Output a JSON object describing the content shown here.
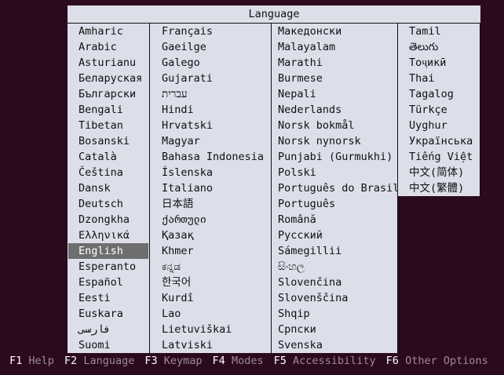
{
  "title": "Language",
  "selected": "English",
  "columns": [
    [
      "Amharic",
      "Arabic",
      "Asturianu",
      "Беларуская",
      "Български",
      "Bengali",
      "Tibetan",
      "Bosanski",
      "Català",
      "Čeština",
      "Dansk",
      "Deutsch",
      "Dzongkha",
      "Ελληνικά",
      "English",
      "Esperanto",
      "Español",
      "Eesti",
      "Euskara",
      "فارسی",
      "Suomi"
    ],
    [
      "Français",
      "Gaeilge",
      "Galego",
      "Gujarati",
      "עברית",
      "Hindi",
      "Hrvatski",
      "Magyar",
      "Bahasa Indonesia",
      "Íslenska",
      "Italiano",
      "日本語",
      "ქართული",
      "Қазақ",
      "Khmer",
      "ಕನ್ನಡ",
      "한국어",
      "Kurdî",
      "Lao",
      "Lietuviškai",
      "Latviski"
    ],
    [
      "Македонски",
      "Malayalam",
      "Marathi",
      "Burmese",
      "Nepali",
      "Nederlands",
      "Norsk bokmål",
      "Norsk nynorsk",
      "Punjabi (Gurmukhi)",
      "Polski",
      "Português do Brasil",
      "Português",
      "Română",
      "Русский",
      "Sámegillii",
      "සිංහල",
      "Slovenčina",
      "Slovenščina",
      "Shqip",
      "Српски",
      "Svenska"
    ],
    [
      "Tamil",
      "తెలుగు",
      "Тоҷикӣ",
      "Thai",
      "Tagalog",
      "Türkçe",
      "Uyghur",
      "Українська",
      "Tiếng Việt",
      "中文(简体)",
      "中文(繁體)"
    ]
  ],
  "footer": [
    {
      "key": "F1",
      "label": "Help"
    },
    {
      "key": "F2",
      "label": "Language"
    },
    {
      "key": "F3",
      "label": "Keymap"
    },
    {
      "key": "F4",
      "label": "Modes"
    },
    {
      "key": "F5",
      "label": "Accessibility"
    },
    {
      "key": "F6",
      "label": "Other Options"
    }
  ],
  "colors": {
    "background": "#2c0a1e",
    "panel": "#dcdee9",
    "selection": "#6e6e6e"
  }
}
